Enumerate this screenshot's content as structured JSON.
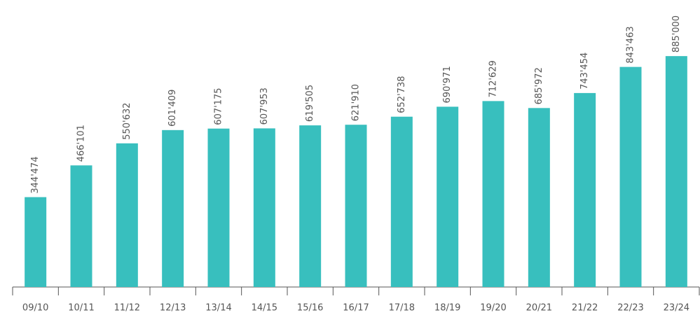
{
  "chart_data": {
    "type": "bar",
    "categories": [
      "09/10",
      "10/11",
      "11/12",
      "12/13",
      "13/14",
      "14/15",
      "15/16",
      "16/17",
      "17/18",
      "18/19",
      "19/20",
      "20/21",
      "21/22",
      "22/23",
      "23/24"
    ],
    "values": [
      344474,
      466101,
      550632,
      601409,
      607175,
      607953,
      619505,
      621910,
      652738,
      690971,
      712629,
      685972,
      743454,
      843463,
      885000
    ],
    "value_labels": [
      "344'474",
      "466'101",
      "550'632",
      "601'409",
      "607'175",
      "607'953",
      "619'505",
      "621'910",
      "652'738",
      "690'971",
      "712'629",
      "685'972",
      "743'454",
      "843'463",
      "885'000"
    ],
    "color": "#38bfbe",
    "ylim": [
      0,
      1100000
    ]
  }
}
